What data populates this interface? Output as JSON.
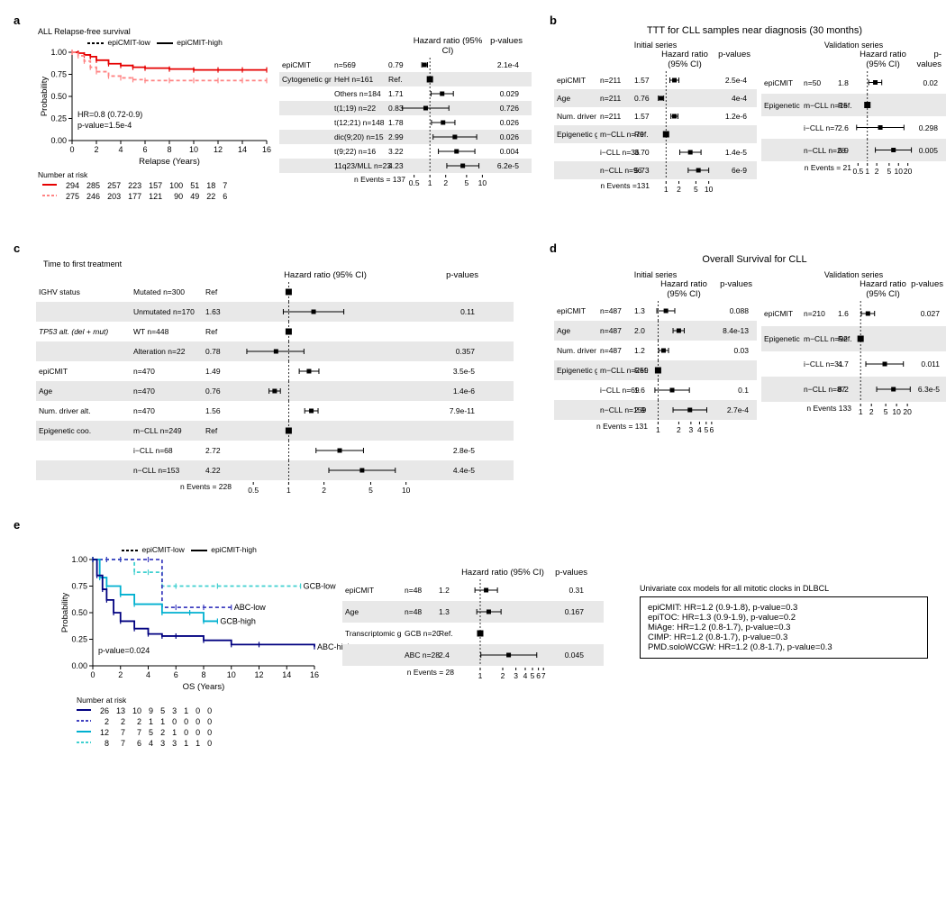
{
  "a": {
    "label": "a",
    "km": {
      "title": "ALL Relapse-free survival",
      "legend_low": "epiCMIT-low",
      "legend_high": "epiCMIT-high",
      "xlabel": "Relapse (Years)",
      "ylabel": "Probability",
      "xlim": [
        0,
        16
      ],
      "xticks": [
        0,
        2,
        4,
        6,
        8,
        10,
        12,
        14,
        16
      ],
      "ylim": [
        0,
        1
      ],
      "yticks": [
        0,
        0.25,
        0.5,
        0.75,
        1
      ],
      "ytick_labels": [
        "0.00",
        "0.25",
        "0.50",
        "0.75",
        "1.00"
      ],
      "hr_text": "HR=0.8 (0.72-0.9)",
      "pval_text": "p-value=1.5e-4",
      "colors": {
        "high": "#e60000",
        "low": "#ff8484"
      },
      "series": {
        "high": [
          [
            0,
            1.0
          ],
          [
            0.5,
            0.99
          ],
          [
            1,
            0.97
          ],
          [
            1.5,
            0.95
          ],
          [
            2,
            0.91
          ],
          [
            3,
            0.87
          ],
          [
            4,
            0.85
          ],
          [
            5,
            0.83
          ],
          [
            6,
            0.82
          ],
          [
            8,
            0.81
          ],
          [
            10,
            0.8
          ],
          [
            12,
            0.8
          ],
          [
            14,
            0.8
          ],
          [
            16,
            0.8
          ]
        ],
        "low": [
          [
            0,
            1.0
          ],
          [
            0.5,
            0.96
          ],
          [
            1,
            0.9
          ],
          [
            1.5,
            0.83
          ],
          [
            2,
            0.78
          ],
          [
            3,
            0.73
          ],
          [
            4,
            0.71
          ],
          [
            5,
            0.69
          ],
          [
            6,
            0.68
          ],
          [
            8,
            0.68
          ],
          [
            10,
            0.68
          ],
          [
            12,
            0.68
          ],
          [
            14,
            0.68
          ],
          [
            16,
            0.68
          ]
        ]
      },
      "nar_label": "Number at risk",
      "nar": {
        "high": [
          294,
          285,
          257,
          223,
          157,
          100,
          51,
          18,
          7
        ],
        "low": [
          275,
          246,
          203,
          177,
          121,
          90,
          49,
          22,
          6
        ]
      }
    },
    "forest": {
      "hr_header": "Hazard ratio (95% CI)",
      "pval_header": "p-values",
      "n_events": "n Events = 137",
      "xticks": [
        0.5,
        1,
        2,
        5,
        10
      ],
      "xlim": [
        0.4,
        12
      ],
      "rows": [
        {
          "var": "epiCMIT",
          "sub": "n=569",
          "hr": "0.79",
          "pt": 0.79,
          "lo": 0.7,
          "hi": 0.9,
          "p": "2.1e-4",
          "shade": false
        },
        {
          "var": "Cytogenetic group",
          "sub": "HeH n=161",
          "hr": "Ref.",
          "pt": 1,
          "lo": null,
          "hi": null,
          "p": "",
          "shade": true,
          "ref": true
        },
        {
          "var": "",
          "sub": "Others n=184",
          "hr": "1.71",
          "pt": 1.71,
          "lo": 1.05,
          "hi": 2.8,
          "p": "0.029",
          "shade": false
        },
        {
          "var": "",
          "sub": "t(1;19) n=22",
          "hr": "0.83",
          "pt": 0.83,
          "lo": 0.3,
          "hi": 2.3,
          "p": "0.726",
          "shade": true
        },
        {
          "var": "",
          "sub": "t(12;21) n=148",
          "hr": "1.78",
          "pt": 1.78,
          "lo": 1.07,
          "hi": 3.0,
          "p": "0.026",
          "shade": false
        },
        {
          "var": "",
          "sub": "dic(9;20) n=15",
          "hr": "2.99",
          "pt": 2.99,
          "lo": 1.15,
          "hi": 7.8,
          "p": "0.026",
          "shade": true
        },
        {
          "var": "",
          "sub": "t(9;22) n=16",
          "hr": "3.22",
          "pt": 3.22,
          "lo": 1.45,
          "hi": 7.2,
          "p": "0.004",
          "shade": false
        },
        {
          "var": "",
          "sub": "11q23/MLL n=23",
          "hr": "4.23",
          "pt": 4.23,
          "lo": 2.1,
          "hi": 8.6,
          "p": "6.2e-5",
          "shade": true
        }
      ]
    }
  },
  "b": {
    "label": "b",
    "title": "TTT for CLL samples near diagnosis (30 months)",
    "series": [
      {
        "title": "Initial series",
        "hr_header": "Hazard ratio (95% CI)",
        "pval_header": "p-values",
        "n_events": "n Events =131",
        "xticks": [
          1,
          2,
          5,
          10
        ],
        "xlim": [
          0.5,
          15
        ],
        "rows": [
          {
            "var": "epiCMIT",
            "sub": "n=211",
            "hr": "1.57",
            "pt": 1.57,
            "lo": 1.23,
            "hi": 2.0,
            "p": "2.5e-4",
            "shade": false
          },
          {
            "var": "Age",
            "sub": "n=211",
            "hr": "0.76",
            "pt": 0.76,
            "lo": 0.66,
            "hi": 0.88,
            "p": "4e-4",
            "shade": true
          },
          {
            "var": "Num. driver alt.",
            "sub": "n=211",
            "hr": "1.57",
            "pt": 1.57,
            "lo": 1.3,
            "hi": 1.9,
            "p": "1.2e-6",
            "shade": false
          },
          {
            "var": "Epigenetic group",
            "sub": "m−CLL n=79",
            "hr": "Ref.",
            "pt": 1,
            "lo": null,
            "hi": null,
            "p": "",
            "shade": true,
            "ref": true
          },
          {
            "var": "",
            "sub": "i−CLL n=36",
            "hr": "3.70",
            "pt": 3.7,
            "lo": 2.1,
            "hi": 6.6,
            "p": "1.4e-5",
            "shade": false
          },
          {
            "var": "",
            "sub": "n−CLL n=96",
            "hr": "5.73",
            "pt": 5.73,
            "lo": 3.3,
            "hi": 10.0,
            "p": "6e-9",
            "shade": true
          }
        ]
      },
      {
        "title": "Validation series",
        "hr_header": "Hazard ratio (95% CI)",
        "pval_header": "p-values",
        "n_events": "n Events = 21",
        "xticks": [
          0.5,
          1,
          2,
          5,
          10,
          20
        ],
        "xlim": [
          0.4,
          25
        ],
        "rows": [
          {
            "var": "epiCMIT",
            "sub": "n=50",
            "hr": "1.8",
            "pt": 1.8,
            "lo": 1.1,
            "hi": 2.9,
            "p": "0.02",
            "shade": false
          },
          {
            "var": "Epigenetic group",
            "sub": "m−CLL n=15",
            "hr": "Ref.",
            "pt": 1,
            "lo": null,
            "hi": null,
            "p": "",
            "shade": true,
            "ref": true
          },
          {
            "var": "",
            "sub": "i−CLL n=7",
            "hr": "2.6",
            "pt": 2.6,
            "lo": 0.45,
            "hi": 15,
            "p": "0.298",
            "shade": false
          },
          {
            "var": "",
            "sub": "n−CLL n=28",
            "hr": "6.9",
            "pt": 6.9,
            "lo": 1.8,
            "hi": 26,
            "p": "0.005",
            "shade": true
          }
        ]
      }
    ]
  },
  "c": {
    "label": "c",
    "title": "Time to first treatment",
    "hr_header": "Hazard ratio (95% CI)",
    "pval_header": "p-values",
    "n_events": "n Events = 228",
    "xticks": [
      0.5,
      1,
      2,
      5,
      10
    ],
    "xlim": [
      0.35,
      12
    ],
    "rows": [
      {
        "var": "IGHV status",
        "sub": "Mutated n=300",
        "hr": "Ref",
        "pt": 1,
        "lo": null,
        "hi": null,
        "p": "",
        "shade": false,
        "ref": true
      },
      {
        "var": "",
        "sub": "Unmutated n=170",
        "hr": "1.63",
        "pt": 1.63,
        "lo": 0.9,
        "hi": 2.95,
        "p": "0.11",
        "shade": true
      },
      {
        "var": "TP53 alt. (del + mut)",
        "sub": "WT n=448",
        "hr": "Ref",
        "pt": 1,
        "lo": null,
        "hi": null,
        "p": "",
        "shade": false,
        "ref": true,
        "italic": true
      },
      {
        "var": "",
        "sub": "Alteration n=22",
        "hr": "0.78",
        "pt": 0.78,
        "lo": 0.44,
        "hi": 1.35,
        "p": "0.357",
        "shade": true
      },
      {
        "var": "epiCMIT",
        "sub": "n=470",
        "hr": "1.49",
        "pt": 1.49,
        "lo": 1.23,
        "hi": 1.81,
        "p": "3.5e-5",
        "shade": false
      },
      {
        "var": "Age",
        "sub": "n=470",
        "hr": "0.76",
        "pt": 0.76,
        "lo": 0.68,
        "hi": 0.85,
        "p": "1.4e-6",
        "shade": true
      },
      {
        "var": "Num. driver alt.",
        "sub": "n=470",
        "hr": "1.56",
        "pt": 1.56,
        "lo": 1.37,
        "hi": 1.78,
        "p": "7.9e-11",
        "shade": false
      },
      {
        "var": "Epigenetic coo.",
        "sub": "m−CLL n=249",
        "hr": "Ref",
        "pt": 1,
        "lo": null,
        "hi": null,
        "p": "",
        "shade": true,
        "ref": true
      },
      {
        "var": "",
        "sub": "i−CLL n=68",
        "hr": "2.72",
        "pt": 2.72,
        "lo": 1.71,
        "hi": 4.34,
        "p": "2.8e-5",
        "shade": false
      },
      {
        "var": "",
        "sub": "n−CLL n=153",
        "hr": "4.22",
        "pt": 4.22,
        "lo": 2.2,
        "hi": 8.1,
        "p": "4.4e-5",
        "shade": true
      }
    ]
  },
  "d": {
    "label": "d",
    "title": "Overall Survival for CLL",
    "series": [
      {
        "title": "Initial series",
        "hr_header": "Hazard ratio (95% CI)",
        "pval_header": "p-values",
        "n_events": "n Events = 131",
        "xticks": [
          1,
          2,
          3,
          4,
          5,
          6
        ],
        "xlim": [
          0.8,
          7
        ],
        "rows": [
          {
            "var": "epiCMIT",
            "sub": "n=487",
            "hr": "1.3",
            "pt": 1.3,
            "lo": 0.96,
            "hi": 1.75,
            "p": "0.088",
            "shade": false
          },
          {
            "var": "Age",
            "sub": "n=487",
            "hr": "2.0",
            "pt": 2.0,
            "lo": 1.65,
            "hi": 2.4,
            "p": "8.4e-13",
            "shade": true
          },
          {
            "var": "Num. driver alt.",
            "sub": "n=487",
            "hr": "1.2",
            "pt": 1.2,
            "lo": 1.02,
            "hi": 1.42,
            "p": "0.03",
            "shade": false
          },
          {
            "var": "Epigenetic group",
            "sub": "m−CLL n=259",
            "hr": "Ref.",
            "pt": 1,
            "lo": null,
            "hi": null,
            "p": "",
            "shade": true,
            "ref": true
          },
          {
            "var": "",
            "sub": "i−CLL n=69",
            "hr": "1.6",
            "pt": 1.6,
            "lo": 0.9,
            "hi": 2.85,
            "p": "0.1",
            "shade": false
          },
          {
            "var": "",
            "sub": "n−CLL n=159",
            "hr": "2.9",
            "pt": 2.9,
            "lo": 1.65,
            "hi": 5.1,
            "p": "2.7e-4",
            "shade": true
          }
        ]
      },
      {
        "title": "Validation series",
        "hr_header": "Hazard ratio (95% CI)",
        "pval_header": "p-values",
        "n_events": "n Events 133",
        "xticks": [
          1,
          2,
          5,
          10,
          20
        ],
        "xlim": [
          0.7,
          25
        ],
        "rows": [
          {
            "var": "epiCMIT",
            "sub": "n=210",
            "hr": "1.6",
            "pt": 1.6,
            "lo": 1.05,
            "hi": 2.45,
            "p": "0.027",
            "shade": false
          },
          {
            "var": "Epigenetic group",
            "sub": "m−CLL n=92",
            "hr": "Ref.",
            "pt": 1,
            "lo": null,
            "hi": null,
            "p": "",
            "shade": true,
            "ref": true
          },
          {
            "var": "",
            "sub": "i−CLL n=31",
            "hr": "4.7",
            "pt": 4.7,
            "lo": 1.4,
            "hi": 15.5,
            "p": "0.011",
            "shade": false
          },
          {
            "var": "",
            "sub": "n−CLL n=87",
            "hr": "8.2",
            "pt": 8.2,
            "lo": 2.8,
            "hi": 24,
            "p": "6.3e-5",
            "shade": true
          }
        ]
      }
    ]
  },
  "e": {
    "label": "e",
    "km": {
      "legend_low": "epiCMIT-low",
      "legend_high": "epiCMIT-high",
      "xlabel": "OS (Years)",
      "ylabel": "Probability",
      "xlim": [
        0,
        16
      ],
      "xticks": [
        0,
        2,
        4,
        6,
        8,
        10,
        12,
        14,
        16
      ],
      "ylim": [
        0,
        1
      ],
      "yticks": [
        0,
        0.25,
        0.5,
        0.75,
        1
      ],
      "ytick_labels": [
        "0.00",
        "0.25",
        "0.50",
        "0.75",
        "1.00"
      ],
      "pval_text": "p-value=0.024",
      "colors": {
        "abc_high": "#000080",
        "abc_low": "#4040c0",
        "gcb_high": "#00b0d0",
        "gcb_low": "#40d0d0"
      },
      "curve_labels": {
        "gcb_low": "GCB-low",
        "abc_low": "ABC-low",
        "gcb_high": "GCB-high",
        "abc_high": "ABC-high"
      },
      "series": {
        "abc_high": [
          [
            0,
            1.0
          ],
          [
            0.3,
            0.85
          ],
          [
            0.7,
            0.72
          ],
          [
            1,
            0.62
          ],
          [
            1.5,
            0.5
          ],
          [
            2,
            0.42
          ],
          [
            3,
            0.35
          ],
          [
            4,
            0.3
          ],
          [
            5,
            0.28
          ],
          [
            6,
            0.28
          ],
          [
            8,
            0.24
          ],
          [
            10,
            0.2
          ],
          [
            12,
            0.2
          ],
          [
            16,
            0.18
          ]
        ],
        "abc_low": [
          [
            0,
            1.0
          ],
          [
            1,
            1.0
          ],
          [
            2,
            1.0
          ],
          [
            4,
            1.0
          ],
          [
            5,
            0.55
          ],
          [
            6,
            0.55
          ],
          [
            8,
            0.55
          ],
          [
            10,
            0.55
          ]
        ],
        "gcb_high": [
          [
            0,
            1.0
          ],
          [
            0.5,
            0.83
          ],
          [
            1,
            0.75
          ],
          [
            2,
            0.67
          ],
          [
            3,
            0.58
          ],
          [
            5,
            0.5
          ],
          [
            7,
            0.5
          ],
          [
            8,
            0.42
          ],
          [
            9,
            0.42
          ]
        ],
        "gcb_low": [
          [
            0,
            1.0
          ],
          [
            1,
            1.0
          ],
          [
            2,
            1.0
          ],
          [
            3,
            0.88
          ],
          [
            4,
            0.88
          ],
          [
            5,
            0.75
          ],
          [
            6,
            0.75
          ],
          [
            9,
            0.75
          ],
          [
            15,
            0.75
          ]
        ]
      },
      "nar_label": "Number at risk",
      "nar": {
        "abc_high": [
          26,
          13,
          10,
          9,
          5,
          3,
          1,
          0,
          0
        ],
        "abc_low": [
          2,
          2,
          2,
          1,
          1,
          0,
          0,
          0,
          0
        ],
        "gcb_high": [
          12,
          7,
          7,
          5,
          2,
          1,
          0,
          0,
          0
        ],
        "gcb_low": [
          8,
          7,
          6,
          4,
          3,
          3,
          1,
          1,
          0
        ]
      }
    },
    "forest": {
      "hr_header": "Hazard ratio (95% CI)",
      "pval_header": "p-values",
      "n_events": "n Events = 28",
      "xticks": [
        1,
        2,
        3,
        4,
        5,
        6,
        7
      ],
      "xlim": [
        0.5,
        8
      ],
      "rows": [
        {
          "var": "epiCMIT",
          "sub": "n=48",
          "hr": "1.2",
          "pt": 1.2,
          "lo": 0.85,
          "hi": 1.7,
          "p": "0.31",
          "shade": false
        },
        {
          "var": "Age",
          "sub": "n=48",
          "hr": "1.3",
          "pt": 1.3,
          "lo": 0.9,
          "hi": 1.9,
          "p": "0.167",
          "shade": true
        },
        {
          "var": "Transcriptomic group",
          "sub": "GCB n=20",
          "hr": "Ref.",
          "pt": 1,
          "lo": null,
          "hi": null,
          "p": "",
          "shade": false,
          "ref": true
        },
        {
          "var": "",
          "sub": "ABC n=28",
          "hr": "2.4",
          "pt": 2.4,
          "lo": 1.02,
          "hi": 5.7,
          "p": "0.045",
          "shade": true
        }
      ]
    },
    "box": {
      "title": "Univariate cox models for all mitotic clocks in DLBCL",
      "lines": [
        "epiCMIT: HR=1.2 (0.9-1.8), p-value=0.3",
        "epiTOC: HR=1.3 (0.9-1.9), p-value=0.2",
        "MiAge: HR=1.2 (0.8-1.7), p-value=0.3",
        "CIMP: HR=1.2 (0.8-1.7), p-value=0.3",
        "PMD.soloWCGW: HR=1.2 (0.8-1.7), p-value=0.3"
      ]
    }
  }
}
